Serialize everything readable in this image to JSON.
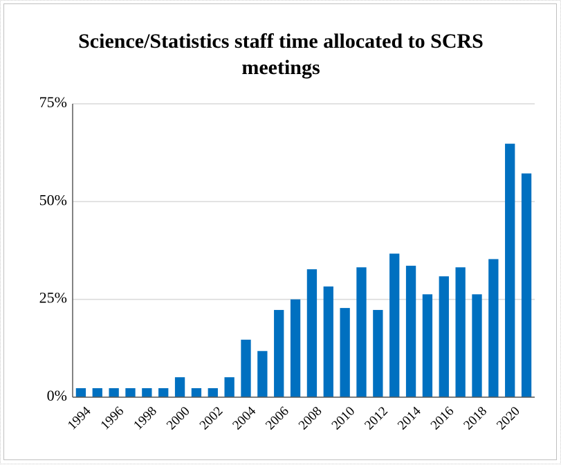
{
  "chart_data": {
    "type": "bar",
    "title": "Science/Statistics staff time allocated to SCRS meetings",
    "categories": [
      "1994",
      null,
      "1996",
      null,
      "1998",
      null,
      "2000",
      null,
      "2002",
      null,
      "2004",
      null,
      "2006",
      null,
      "2008",
      null,
      "2010",
      null,
      "2012",
      null,
      "2014",
      null,
      "2016",
      null,
      "2018",
      null,
      "2020",
      null
    ],
    "values": [
      2.3,
      2.3,
      2.3,
      2.3,
      2.3,
      2.3,
      5.1,
      2.3,
      2.3,
      5.1,
      14.7,
      11.8,
      22.3,
      25,
      32.7,
      28.3,
      22.8,
      33.2,
      22.3,
      36.7,
      33.6,
      26.3,
      30.9,
      33.2,
      26.3,
      35.3,
      64.8,
      57.2
    ],
    "color": "#0070c0",
    "ylim": [
      0,
      75
    ],
    "yticks": [
      {
        "value": 0,
        "label": "0%"
      },
      {
        "value": 25,
        "label": "25%"
      },
      {
        "value": 50,
        "label": "50%"
      },
      {
        "value": 75,
        "label": "75%"
      }
    ],
    "grid": true
  }
}
